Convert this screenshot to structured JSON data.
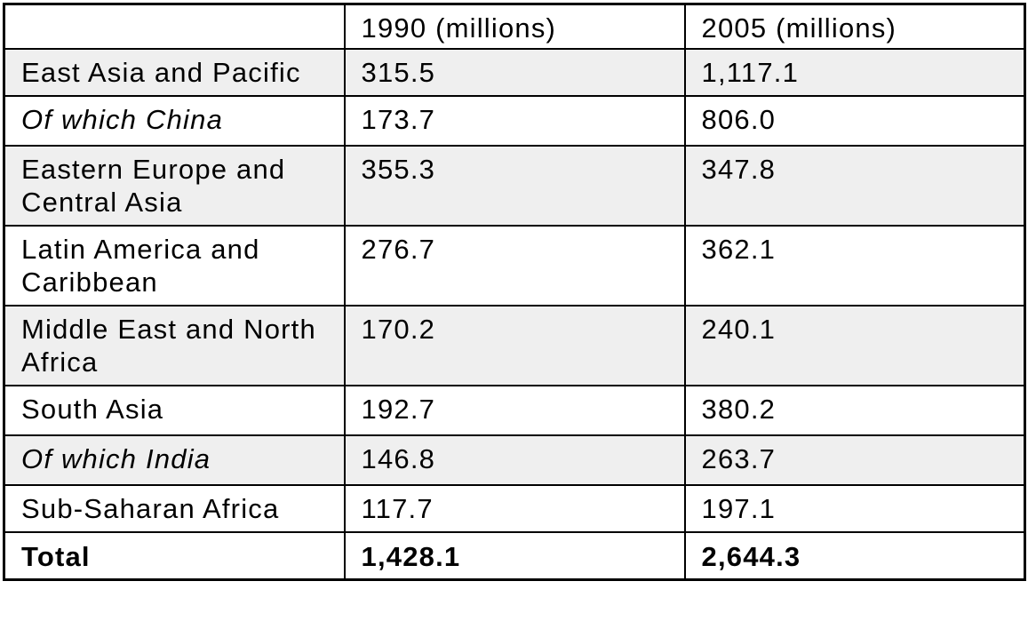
{
  "table": {
    "headers": [
      "",
      "1990 (millions)",
      "2005 (millions)"
    ],
    "rows": [
      {
        "region": "East Asia and Pacific",
        "y1990": "315.5",
        "y2005": "1,117.1"
      },
      {
        "region": "Of which China",
        "y1990": "173.7",
        "y2005": "806.0"
      },
      {
        "region": "Eastern Europe and Central Asia",
        "y1990": "355.3",
        "y2005": "347.8"
      },
      {
        "region": "Latin America and Caribbean",
        "y1990": "276.7",
        "y2005": "362.1"
      },
      {
        "region": "Middle East and North Africa",
        "y1990": "170.2",
        "y2005": "240.1"
      },
      {
        "region": "South Asia",
        "y1990": "192.7",
        "y2005": "380.2"
      },
      {
        "region": "Of which India",
        "y1990": "146.8",
        "y2005": "263.7"
      },
      {
        "region": "Sub-Saharan Africa",
        "y1990": "117.7",
        "y2005": "197.1"
      }
    ],
    "total": {
      "region": "Total",
      "y1990": "1,428.1",
      "y2005": "2,644.3"
    }
  }
}
